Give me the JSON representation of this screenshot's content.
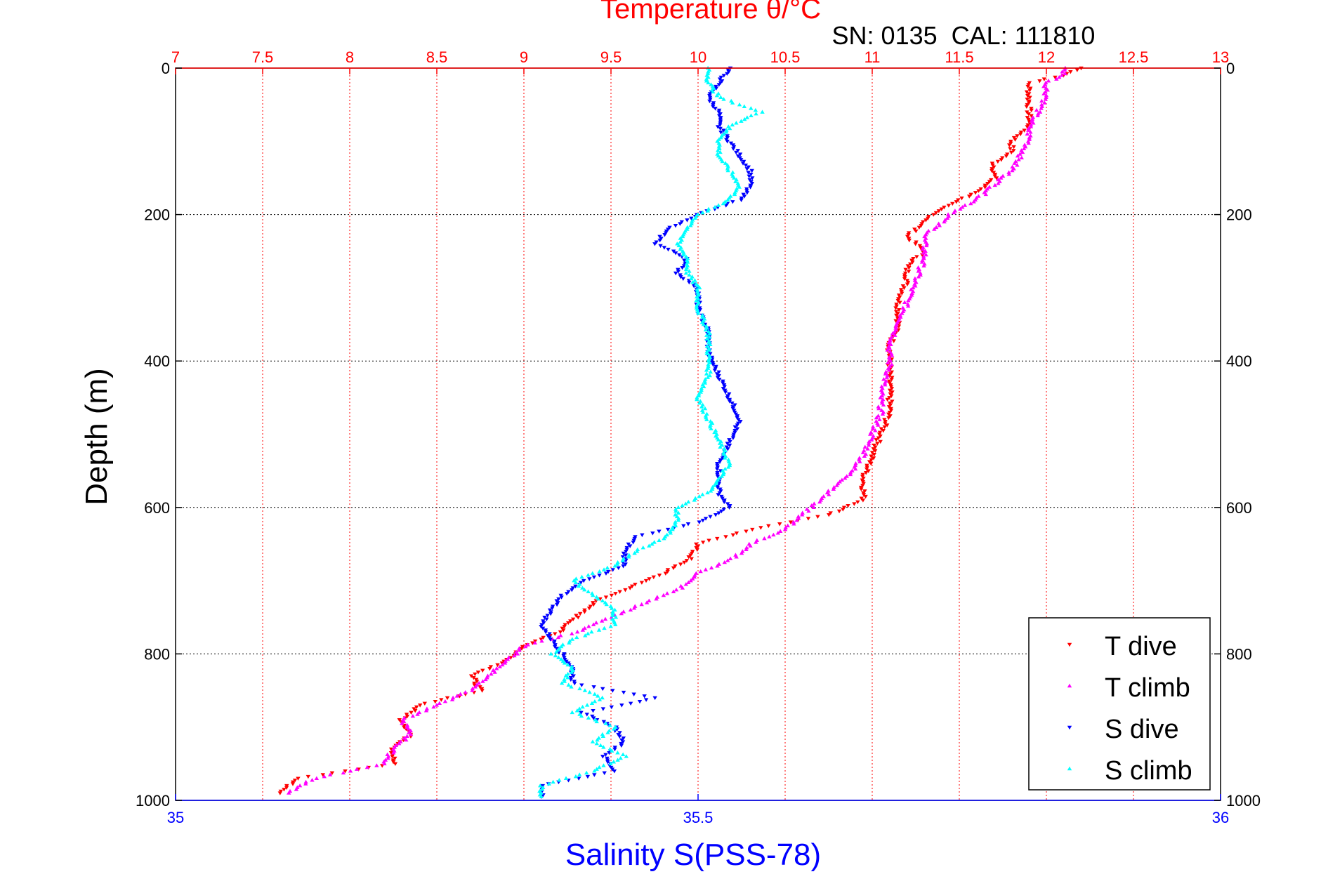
{
  "chart_data": {
    "type": "scatter",
    "title": "Temperature θ/°C",
    "subtitle": "SN: 0135  CAL: 111810",
    "xlabel_bottom": "Salinity S(PSS-78)",
    "ylabel": "Depth (m)",
    "x_top": {
      "label": "Temperature θ/°C",
      "lim": [
        7,
        13
      ],
      "ticks": [
        "7",
        "7.5",
        "8",
        "8.5",
        "9",
        "9.5",
        "10",
        "10.5",
        "11",
        "11.5",
        "12",
        "12.5",
        "13"
      ]
    },
    "x_bottom": {
      "label": "Salinity S(PSS-78)",
      "lim": [
        35,
        36
      ],
      "ticks": [
        "35",
        "35.5",
        "36"
      ]
    },
    "y": {
      "label": "Depth (m)",
      "lim": [
        0,
        1000
      ],
      "reversed": true,
      "ticks": [
        "0",
        "200",
        "400",
        "600",
        "800",
        "1000"
      ]
    },
    "grid": true,
    "legend_position": "bottom-right",
    "colors": {
      "temperature_axis": "#ff0000",
      "salinity_axis": "#0000ff",
      "t_dive": "#ff0000",
      "t_climb": "#ff00ff",
      "s_dive": "#0000ff",
      "s_climb": "#00ffff"
    },
    "series": [
      {
        "name": "T dive",
        "axis": "temperature",
        "color": "#ff0000",
        "marker": "triangle-down",
        "depth": [
          0,
          10,
          20,
          40,
          60,
          80,
          100,
          115,
          130,
          150,
          170,
          190,
          210,
          230,
          250,
          270,
          290,
          320,
          350,
          380,
          410,
          440,
          470,
          500,
          530,
          560,
          590,
          610,
          630,
          650,
          670,
          690,
          710,
          730,
          750,
          770,
          790,
          810,
          830,
          850,
          870,
          890,
          910,
          930,
          950,
          970,
          990
        ],
        "values": [
          12.2,
          12.1,
          11.9,
          11.9,
          11.9,
          11.9,
          11.8,
          11.8,
          11.7,
          11.7,
          11.6,
          11.4,
          11.3,
          11.2,
          11.3,
          11.2,
          11.2,
          11.15,
          11.15,
          11.1,
          11.1,
          11.1,
          11.1,
          11.05,
          11.0,
          10.95,
          10.95,
          10.75,
          10.3,
          10.0,
          9.95,
          9.8,
          9.6,
          9.4,
          9.3,
          9.2,
          9.0,
          8.9,
          8.7,
          8.75,
          8.4,
          8.3,
          8.35,
          8.25,
          8.25,
          7.7,
          7.6
        ]
      },
      {
        "name": "T climb",
        "axis": "temperature",
        "color": "#ff00ff",
        "marker": "triangle-up",
        "depth": [
          0,
          10,
          20,
          40,
          60,
          80,
          100,
          120,
          140,
          160,
          180,
          200,
          230,
          260,
          290,
          320,
          350,
          380,
          410,
          440,
          470,
          500,
          530,
          560,
          590,
          610,
          630,
          650,
          670,
          690,
          710,
          730,
          750,
          770,
          790,
          810,
          830,
          850,
          870,
          890,
          910,
          930,
          950,
          970,
          990
        ],
        "values": [
          12.1,
          12.1,
          12.0,
          12.0,
          11.95,
          11.9,
          11.9,
          11.85,
          11.8,
          11.7,
          11.6,
          11.45,
          11.3,
          11.3,
          11.25,
          11.2,
          11.15,
          11.1,
          11.1,
          11.05,
          11.05,
          11.0,
          10.95,
          10.85,
          10.7,
          10.6,
          10.5,
          10.3,
          10.2,
          10.0,
          9.9,
          9.7,
          9.5,
          9.3,
          9.0,
          8.9,
          8.8,
          8.7,
          8.5,
          8.3,
          8.35,
          8.25,
          8.2,
          7.8,
          7.65
        ]
      },
      {
        "name": "S dive",
        "axis": "salinity",
        "color": "#0000ff",
        "marker": "triangle-down",
        "depth": [
          0,
          20,
          40,
          60,
          80,
          100,
          120,
          140,
          160,
          180,
          200,
          220,
          240,
          260,
          280,
          300,
          330,
          360,
          390,
          420,
          450,
          480,
          510,
          540,
          560,
          580,
          600,
          620,
          640,
          660,
          680,
          700,
          720,
          740,
          760,
          780,
          800,
          820,
          840,
          860,
          880,
          900,
          920,
          940,
          960,
          980,
          995
        ],
        "values": [
          35.53,
          35.52,
          35.51,
          35.52,
          35.52,
          35.53,
          35.54,
          35.55,
          35.55,
          35.54,
          35.5,
          35.47,
          35.46,
          35.49,
          35.48,
          35.5,
          35.5,
          35.51,
          35.51,
          35.52,
          35.53,
          35.54,
          35.53,
          35.52,
          35.52,
          35.52,
          35.53,
          35.5,
          35.44,
          35.43,
          35.43,
          35.39,
          35.37,
          35.36,
          35.35,
          35.36,
          35.37,
          35.38,
          35.38,
          35.46,
          35.39,
          35.42,
          35.43,
          35.41,
          35.42,
          35.35,
          35.35
        ]
      },
      {
        "name": "S climb",
        "axis": "salinity",
        "color": "#00ffff",
        "marker": "triangle-up",
        "depth": [
          0,
          20,
          40,
          60,
          80,
          100,
          120,
          140,
          160,
          180,
          200,
          220,
          240,
          260,
          280,
          300,
          330,
          360,
          390,
          420,
          450,
          480,
          510,
          540,
          560,
          580,
          600,
          620,
          640,
          660,
          680,
          700,
          720,
          740,
          760,
          780,
          800,
          820,
          840,
          860,
          880,
          900,
          920,
          940,
          960,
          980,
          995
        ],
        "values": [
          35.51,
          35.51,
          35.52,
          35.56,
          35.53,
          35.52,
          35.52,
          35.53,
          35.54,
          35.53,
          35.5,
          35.49,
          35.48,
          35.49,
          35.49,
          35.5,
          35.5,
          35.51,
          35.51,
          35.51,
          35.5,
          35.51,
          35.52,
          35.53,
          35.52,
          35.51,
          35.48,
          35.48,
          35.47,
          35.44,
          35.42,
          35.38,
          35.4,
          35.42,
          35.42,
          35.38,
          35.36,
          35.38,
          35.37,
          35.41,
          35.38,
          35.42,
          35.4,
          35.43,
          35.4,
          35.35,
          35.35
        ]
      }
    ]
  }
}
